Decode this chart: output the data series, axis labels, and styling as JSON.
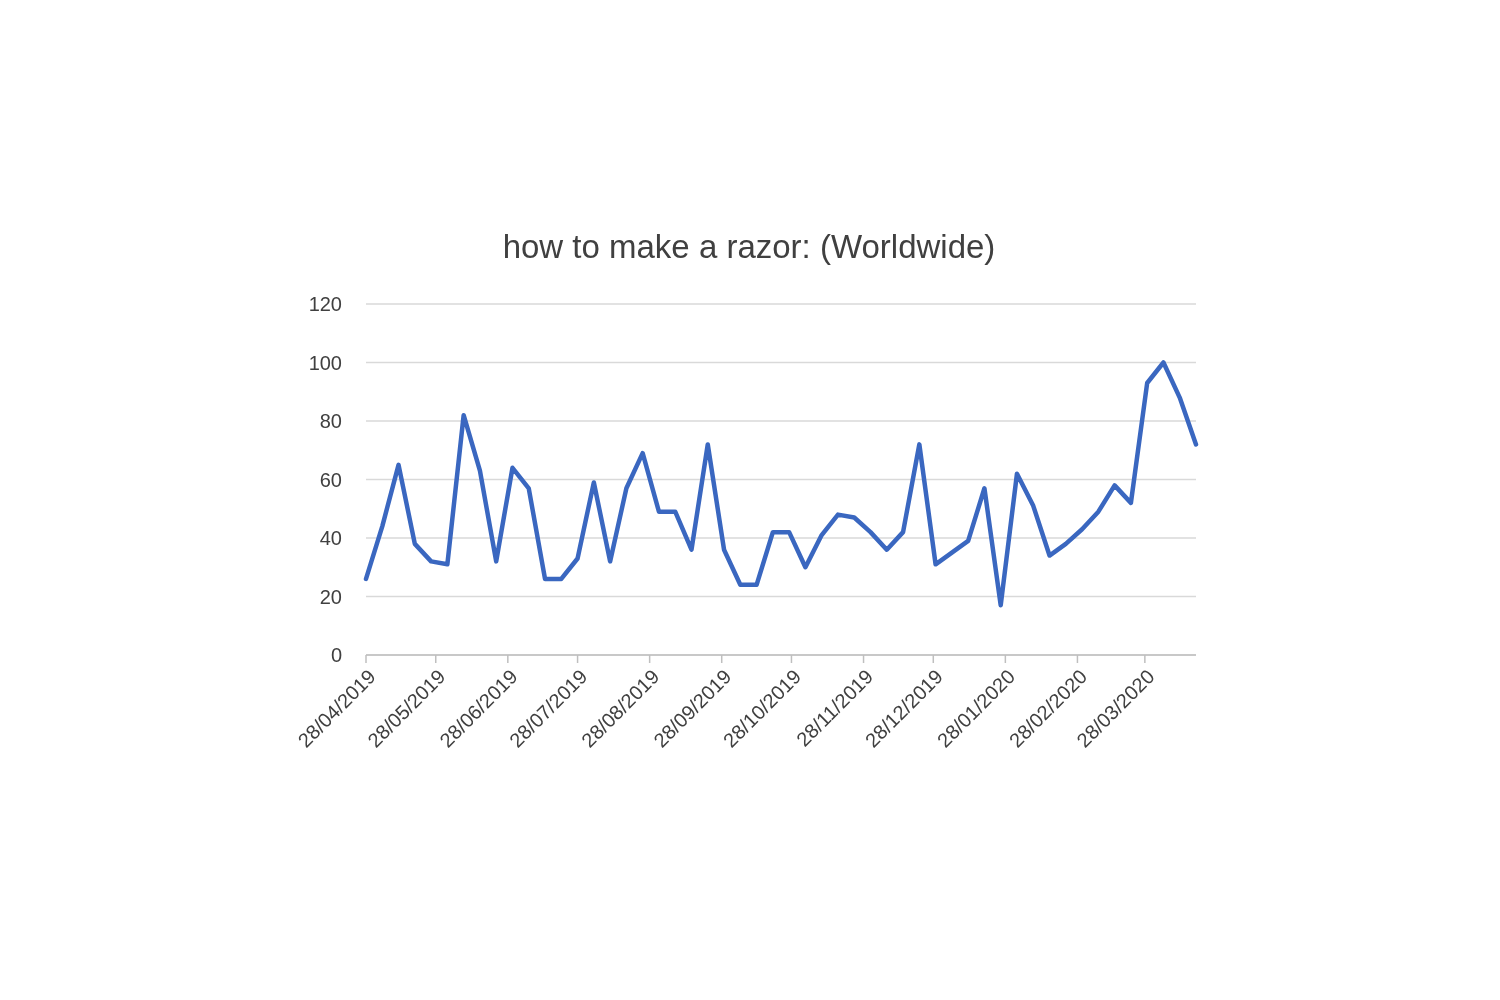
{
  "chart_data": {
    "type": "line",
    "title": "how to make a razor: (Worldwide)",
    "x": [
      "2019-04-28",
      "2019-05-05",
      "2019-05-12",
      "2019-05-19",
      "2019-05-26",
      "2019-06-02",
      "2019-06-09",
      "2019-06-16",
      "2019-06-23",
      "2019-06-30",
      "2019-07-07",
      "2019-07-14",
      "2019-07-21",
      "2019-07-28",
      "2019-08-04",
      "2019-08-11",
      "2019-08-18",
      "2019-08-25",
      "2019-09-01",
      "2019-09-08",
      "2019-09-15",
      "2019-09-22",
      "2019-09-29",
      "2019-10-06",
      "2019-10-13",
      "2019-10-20",
      "2019-10-27",
      "2019-11-03",
      "2019-11-10",
      "2019-11-17",
      "2019-11-24",
      "2019-12-01",
      "2019-12-08",
      "2019-12-15",
      "2019-12-22",
      "2019-12-29",
      "2020-01-05",
      "2020-01-12",
      "2020-01-19",
      "2020-01-26",
      "2020-02-02",
      "2020-02-09",
      "2020-02-16",
      "2020-02-23",
      "2020-03-01",
      "2020-03-08",
      "2020-03-15",
      "2020-03-22",
      "2020-03-29",
      "2020-04-05",
      "2020-04-12",
      "2020-04-19"
    ],
    "series": [
      {
        "color": "#3a67c0",
        "values": [
          26,
          44,
          65,
          38,
          32,
          31,
          82,
          63,
          32,
          64,
          57,
          26,
          26,
          33,
          59,
          32,
          57,
          69,
          49,
          49,
          36,
          72,
          36,
          24,
          24,
          42,
          42,
          30,
          41,
          48,
          47,
          42,
          36,
          42,
          72,
          31,
          35,
          39,
          57,
          17,
          62,
          51,
          34,
          38,
          43,
          49,
          58,
          52,
          93,
          100,
          88,
          72
        ]
      }
    ],
    "xlim": [
      "2019-04-28",
      "2020-04-19"
    ],
    "xticks": [
      {
        "value": "2019-04-28",
        "label": "28/04/2019"
      },
      {
        "value": "2019-05-28",
        "label": "28/05/2019"
      },
      {
        "value": "2019-06-28",
        "label": "28/06/2019"
      },
      {
        "value": "2019-07-28",
        "label": "28/07/2019"
      },
      {
        "value": "2019-08-28",
        "label": "28/08/2019"
      },
      {
        "value": "2019-09-28",
        "label": "28/09/2019"
      },
      {
        "value": "2019-10-28",
        "label": "28/10/2019"
      },
      {
        "value": "2019-11-28",
        "label": "28/11/2019"
      },
      {
        "value": "2019-12-28",
        "label": "28/12/2019"
      },
      {
        "value": "2020-01-28",
        "label": "28/01/2020"
      },
      {
        "value": "2020-02-28",
        "label": "28/02/2020"
      },
      {
        "value": "2020-03-28",
        "label": "28/03/2020"
      }
    ],
    "ylim": [
      0,
      120
    ],
    "yticks": [
      0,
      20,
      40,
      60,
      80,
      100,
      120
    ],
    "grid": "y",
    "marker": "none",
    "line_style": "solid"
  }
}
